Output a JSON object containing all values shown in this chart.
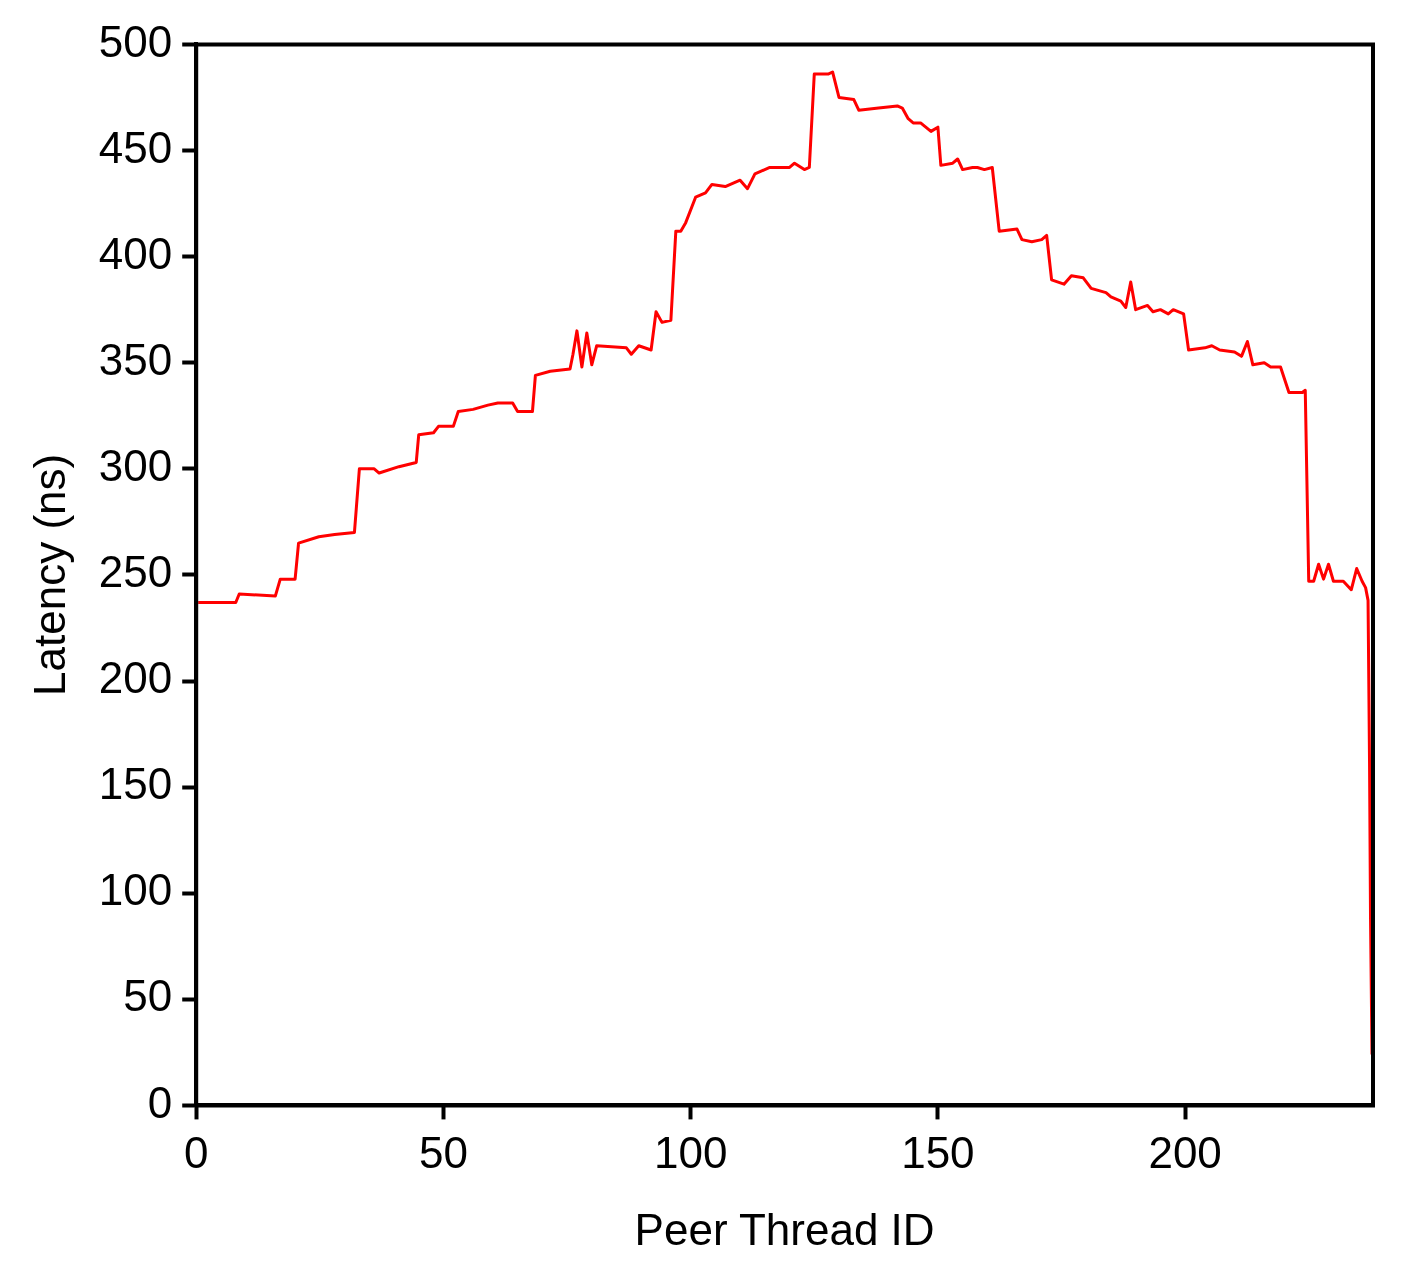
{
  "chart_data": {
    "type": "line",
    "xlabel": "Peer Thread ID",
    "ylabel": "Latency (ns)",
    "xlim": [
      0,
      238
    ],
    "ylim": [
      0,
      500
    ],
    "xticks": [
      0,
      50,
      100,
      150,
      200
    ],
    "yticks": [
      0,
      50,
      100,
      150,
      200,
      250,
      300,
      350,
      400,
      450,
      500
    ],
    "grid": false,
    "legend": false,
    "marker": "none",
    "line_style": "solid",
    "series": [
      {
        "color": "#ff0000",
        "x": [
          0.4,
          8,
          8.7,
          16,
          17,
          20,
          20.7,
          24.8,
          28,
          32,
          33,
          36,
          37,
          41,
          44.5,
          45,
          48,
          49,
          52,
          53,
          56,
          59,
          61,
          64,
          65,
          68,
          68.6,
          71.6,
          75.6,
          76.2,
          77,
          78,
          79,
          80,
          81,
          87,
          88,
          89.5,
          92,
          93,
          94.2,
          96,
          97,
          98,
          99,
          101,
          103,
          104.3,
          107,
          110,
          111.5,
          113,
          116,
          120,
          121,
          123,
          124,
          125,
          127.8,
          128.7,
          130,
          133,
          134,
          138,
          141.8,
          142.8,
          144,
          145,
          146.5,
          148.6,
          150,
          150.6,
          153,
          154,
          155,
          157,
          158,
          159.4,
          161,
          162.4,
          166,
          167,
          169,
          171,
          172,
          173,
          175.5,
          177,
          179.4,
          181,
          184,
          185,
          187,
          188,
          189,
          190,
          192.4,
          193.5,
          195,
          196.6,
          197.6,
          199.7,
          200.7,
          204,
          205.4,
          207,
          210,
          211.4,
          212.6,
          213.7,
          216,
          217.3,
          219.3,
          221,
          223.7,
          224.3,
          225,
          226,
          227,
          228,
          229,
          230,
          232,
          233.6,
          234.7,
          235.8,
          236.5,
          237,
          237.3,
          237.5,
          237.8
        ],
        "values": [
          237,
          237,
          241,
          240,
          248,
          248,
          265,
          268,
          269,
          270,
          300,
          300,
          298,
          301,
          303,
          316,
          317,
          320,
          320,
          327,
          328,
          330,
          331,
          331,
          327,
          327,
          344,
          346,
          347,
          354,
          365,
          348,
          364,
          349,
          358,
          357,
          354,
          358,
          356,
          374,
          369,
          370,
          412,
          412,
          416,
          428,
          430,
          434,
          433,
          436,
          432,
          439,
          442,
          442,
          444,
          441,
          442,
          486,
          486,
          487,
          475,
          474,
          469,
          470,
          471,
          470,
          465,
          463,
          463,
          459,
          461,
          443,
          444,
          446,
          441,
          442,
          442,
          441,
          442,
          412,
          413,
          408,
          407,
          408,
          410,
          389,
          387,
          391,
          390,
          385,
          383,
          381,
          379,
          376,
          388,
          375,
          377,
          374,
          375,
          373,
          375,
          373,
          356,
          357,
          358,
          356,
          355,
          353,
          360,
          349,
          350,
          348,
          348,
          336,
          336,
          337,
          247,
          247,
          255,
          248,
          255,
          247,
          247,
          243,
          253,
          247,
          244,
          238,
          161,
          88,
          24
        ]
      }
    ]
  }
}
